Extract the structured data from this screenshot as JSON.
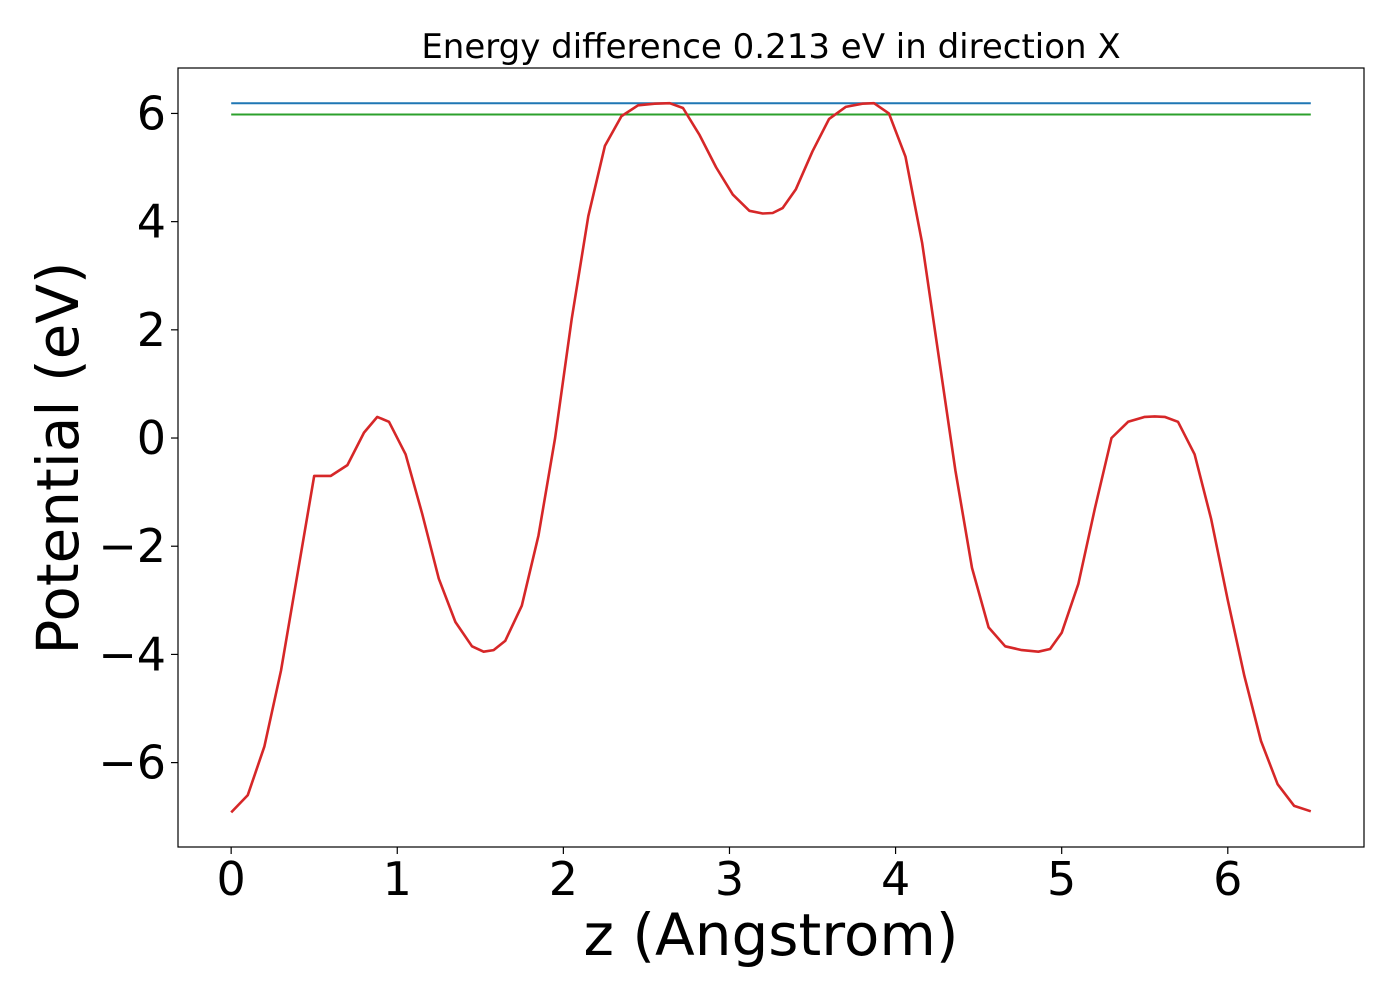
{
  "chart_data": {
    "type": "line",
    "title": "Energy difference 0.213 eV in direction X",
    "xlabel": "z (Angstrom)",
    "ylabel": "Potential (eV)",
    "xlim": [
      -0.32,
      6.82
    ],
    "ylim": [
      -7.56,
      6.84
    ],
    "xticks": [
      0,
      1,
      2,
      3,
      4,
      5,
      6
    ],
    "yticks": [
      -6,
      -4,
      -2,
      0,
      2,
      4,
      6
    ],
    "xtick_labels": [
      "0",
      "1",
      "2",
      "3",
      "4",
      "5",
      "6"
    ],
    "ytick_labels": [
      "−6",
      "−4",
      "−2",
      "0",
      "2",
      "4",
      "6"
    ],
    "grid": false,
    "legend": "none",
    "series": [
      {
        "color": "#1f77b4",
        "x": [
          0,
          6.5
        ],
        "y": [
          6.19,
          6.19
        ]
      },
      {
        "color": "#2ca02c",
        "x": [
          0,
          6.5
        ],
        "y": [
          5.98,
          5.98
        ]
      },
      {
        "color": "#d62728",
        "x": [
          0,
          0.1,
          0.2,
          0.3,
          0.4,
          0.5,
          0.6,
          0.7,
          0.8,
          0.88,
          0.95,
          1.05,
          1.15,
          1.25,
          1.35,
          1.45,
          1.52,
          1.58,
          1.65,
          1.75,
          1.85,
          1.95,
          2.05,
          2.15,
          2.25,
          2.35,
          2.45,
          2.55,
          2.64,
          2.72,
          2.82,
          2.92,
          3.02,
          3.12,
          3.2,
          3.26,
          3.32,
          3.4,
          3.5,
          3.6,
          3.7,
          3.8,
          3.87,
          3.96,
          4.06,
          4.16,
          4.26,
          4.36,
          4.46,
          4.56,
          4.66,
          4.76,
          4.86,
          4.93,
          5.0,
          5.1,
          5.2,
          5.3,
          5.4,
          5.5,
          5.56,
          5.62,
          5.7,
          5.8,
          5.9,
          6.0,
          6.1,
          6.2,
          6.3,
          6.4,
          6.5
        ],
        "y": [
          -6.92,
          -6.6,
          -5.7,
          -4.3,
          -2.5,
          -0.7,
          -0.7,
          -0.5,
          0.1,
          0.39,
          0.3,
          -0.3,
          -1.4,
          -2.6,
          -3.4,
          -3.85,
          -3.95,
          -3.92,
          -3.75,
          -3.1,
          -1.8,
          0.0,
          2.2,
          4.1,
          5.4,
          5.95,
          6.15,
          6.18,
          6.19,
          6.1,
          5.6,
          5.0,
          4.5,
          4.2,
          4.15,
          4.16,
          4.25,
          4.6,
          5.3,
          5.9,
          6.12,
          6.18,
          6.19,
          6.0,
          5.2,
          3.6,
          1.5,
          -0.6,
          -2.4,
          -3.5,
          -3.85,
          -3.92,
          -3.95,
          -3.9,
          -3.6,
          -2.7,
          -1.3,
          0.0,
          0.3,
          0.39,
          0.4,
          0.39,
          0.3,
          -0.3,
          -1.5,
          -3.0,
          -4.4,
          -5.6,
          -6.4,
          -6.8,
          -6.9
        ]
      }
    ]
  }
}
